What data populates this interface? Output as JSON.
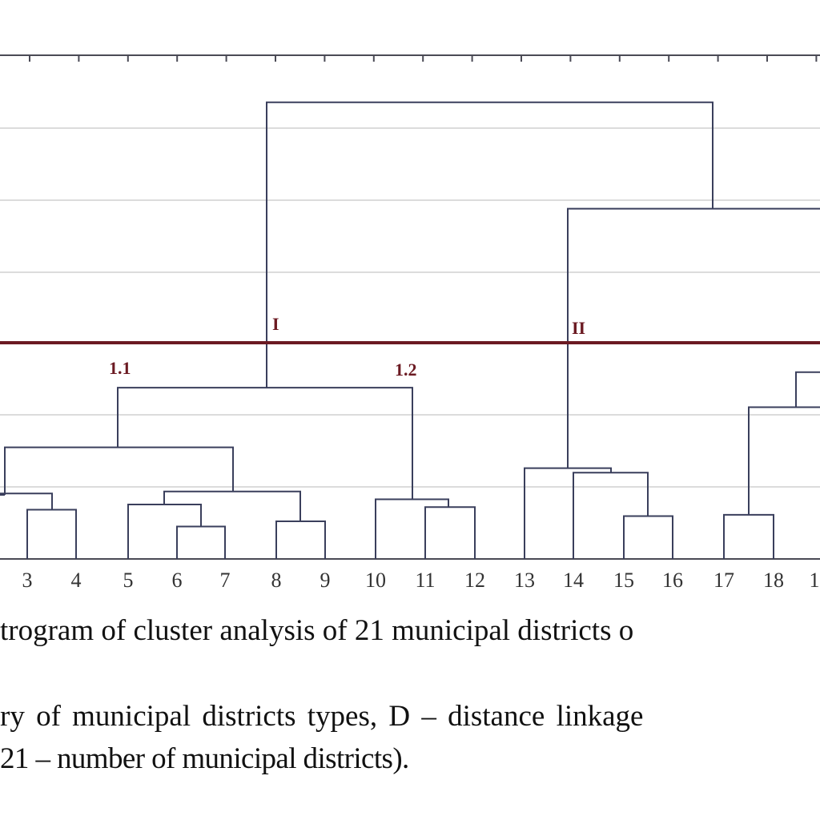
{
  "chart_data": {
    "type": "dendrogram",
    "leaf_labels": [
      "3",
      "4",
      "5",
      "6",
      "7",
      "8",
      "9",
      "10",
      "11",
      "12",
      "13",
      "14",
      "15",
      "16",
      "17",
      "18",
      "1"
    ],
    "cut_line": {
      "labels": [
        "I",
        "II"
      ]
    },
    "cluster_labels": [
      "1.1",
      "1.2"
    ],
    "merges": [
      {
        "children": [
          "3",
          "4"
        ],
        "height": 0.76
      },
      {
        "children": [
          "6",
          "7"
        ],
        "height": 0.5
      },
      {
        "children": [
          "5",
          "6+7"
        ],
        "height": 0.84
      },
      {
        "children": [
          "8",
          "9"
        ],
        "height": 0.58
      },
      {
        "children": [
          "5-7",
          "8-9"
        ],
        "height": 1.04
      },
      {
        "children": [
          "11",
          "12"
        ],
        "height": 0.8
      },
      {
        "children": [
          "10",
          "11-12"
        ],
        "height": 0.92
      },
      {
        "children": [
          "15",
          "16"
        ],
        "height": 0.66
      },
      {
        "children": [
          "14",
          "15-16"
        ],
        "height": 1.33
      },
      {
        "children": [
          "13",
          "14-16"
        ],
        "height": 1.4
      },
      {
        "children": [
          "17",
          "18"
        ],
        "height": 0.68
      },
      {
        "children": [
          "left",
          "3-4"
        ],
        "height": 1.01
      },
      {
        "children": [
          "left-4",
          "5-9"
        ],
        "height": 1.72
      },
      {
        "children": [
          "1.1",
          "1.2"
        ],
        "height": 2.64
      },
      {
        "children": [
          "17-18",
          "right"
        ],
        "height": 2.34
      },
      {
        "children": [
          "19",
          "20"
        ],
        "height": 2.88
      },
      {
        "children": [
          "13-16",
          "17-21"
        ],
        "height": 5.4
      },
      {
        "children": [
          "I",
          "II"
        ],
        "height": 7.04
      }
    ],
    "grid": true
  },
  "caption": {
    "line1": "trogram of cluster analysis of 21 municipal districts o",
    "line2": "ry of municipal districts types, D – distance linkage",
    "line3": "21 – number of municipal districts)."
  }
}
